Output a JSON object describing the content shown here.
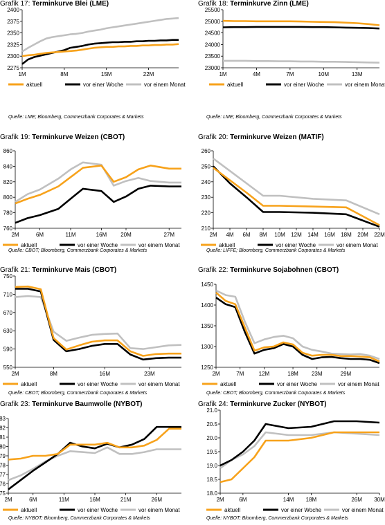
{
  "legend": {
    "aktuell": "aktuell",
    "woche": "vor einer Woche",
    "monat": "vor einem Monat"
  },
  "colors": {
    "aktuell": "#f7a21b",
    "woche": "#000000",
    "monat": "#c0c0c0"
  },
  "chart_data": [
    {
      "id": "g17",
      "type": "line",
      "title_prefix": "Grafik 17:",
      "title": "Terminkurve Blei (LME)",
      "source": "Quelle: LME; Bloomberg, Commerzbank Corporates & Markets",
      "x": [
        1,
        2,
        3,
        4,
        5,
        6,
        7,
        8,
        9,
        10,
        11,
        12,
        13,
        14,
        15,
        16,
        17,
        18,
        19,
        20,
        21,
        22,
        23,
        24,
        25,
        26,
        27
      ],
      "xticks": [
        "1M",
        "8M",
        "15M",
        "22M"
      ],
      "xtick_pos": [
        1,
        8,
        15,
        22
      ],
      "ylim": [
        2275,
        2400
      ],
      "yticks": [
        2275,
        2300,
        2325,
        2350,
        2375,
        2400
      ],
      "series": [
        {
          "name": "aktuell",
          "key": "aktuell",
          "values": [
            2300,
            2302,
            2303,
            2305,
            2307,
            2308,
            2309,
            2310,
            2311,
            2312,
            2314,
            2316,
            2318,
            2319,
            2320,
            2320,
            2321,
            2321,
            2322,
            2322,
            2323,
            2323,
            2324,
            2324,
            2325,
            2325,
            2326
          ]
        },
        {
          "name": "vor einer Woche",
          "key": "woche",
          "values": [
            2283,
            2293,
            2298,
            2301,
            2304,
            2307,
            2310,
            2313,
            2318,
            2320,
            2322,
            2325,
            2327,
            2328,
            2329,
            2330,
            2330,
            2331,
            2331,
            2332,
            2332,
            2333,
            2333,
            2334,
            2334,
            2335,
            2335
          ]
        },
        {
          "name": "vor einem Monat",
          "key": "monat",
          "values": [
            2310,
            2318,
            2325,
            2332,
            2338,
            2341,
            2343,
            2345,
            2347,
            2348,
            2350,
            2353,
            2355,
            2357,
            2360,
            2362,
            2364,
            2366,
            2368,
            2370,
            2372,
            2374,
            2376,
            2378,
            2380,
            2381,
            2382
          ]
        }
      ]
    },
    {
      "id": "g18",
      "type": "line",
      "title_prefix": "Grafik 18:",
      "title": "Terminkurve Zinn (LME)",
      "source": "Quelle: LME; Bloomberg, Commerzbank Corporates & Markets",
      "x": [
        1,
        2,
        3,
        4,
        5,
        6,
        7,
        8,
        9,
        10,
        11,
        12,
        13,
        14,
        15
      ],
      "xticks": [
        "1M",
        "4M",
        "7M",
        "10M",
        "13M"
      ],
      "xtick_pos": [
        1,
        4,
        7,
        10,
        13
      ],
      "ylim": [
        23000,
        25500
      ],
      "yticks": [
        23000,
        23500,
        24000,
        24500,
        25000,
        25500
      ],
      "series": [
        {
          "name": "aktuell",
          "key": "aktuell",
          "values": [
            25020,
            25010,
            25010,
            25000,
            25000,
            25000,
            25000,
            24990,
            24980,
            24970,
            24960,
            24940,
            24920,
            24880,
            24830
          ]
        },
        {
          "name": "vor einer Woche",
          "key": "woche",
          "values": [
            24740,
            24750,
            24750,
            24760,
            24760,
            24760,
            24760,
            24760,
            24750,
            24750,
            24740,
            24730,
            24720,
            24710,
            24690
          ]
        },
        {
          "name": "vor einem Monat",
          "key": "monat",
          "values": [
            23300,
            23300,
            23300,
            23290,
            23290,
            23280,
            23280,
            23270,
            23270,
            23260,
            23260,
            23250,
            23240,
            23230,
            23220
          ]
        }
      ]
    },
    {
      "id": "g19",
      "type": "line",
      "title_prefix": "Grafik 19:",
      "title": "Terminkurve Weizen (CBOT)",
      "source": "Quelle: CBOT; Bloomberg, Commerzbank Corporates & Markets",
      "x": [
        2,
        4,
        6,
        9,
        11,
        13,
        15,
        16,
        18,
        20,
        22,
        24,
        27,
        29
      ],
      "xticks": [
        "2M",
        "6M",
        "11M",
        "16M",
        "20M",
        "27M"
      ],
      "xtick_pos": [
        2,
        6,
        11,
        16,
        20,
        27
      ],
      "ylim": [
        760,
        860
      ],
      "yticks": [
        760,
        780,
        800,
        820,
        840,
        860
      ],
      "series": [
        {
          "name": "aktuell",
          "key": "aktuell",
          "values": [
            792,
            798,
            803,
            814,
            826,
            838,
            840,
            841,
            820,
            826,
            836,
            841,
            837,
            837
          ]
        },
        {
          "name": "vor einer Woche",
          "key": "woche",
          "values": [
            767,
            773,
            777,
            785,
            798,
            811,
            809,
            808,
            794,
            801,
            811,
            815,
            814,
            814
          ]
        },
        {
          "name": "vor einem Monat",
          "key": "monat",
          "values": [
            794,
            804,
            810,
            824,
            836,
            845,
            843,
            842,
            815,
            821,
            825,
            821,
            819,
            819
          ]
        }
      ]
    },
    {
      "id": "g20",
      "type": "line",
      "title_prefix": "Grafik 20:",
      "title": "Terminkurve Weizen (MATIF)",
      "source": "Quelle: LIFFE; Bloomberg, Commerzbank Corporates & Markets",
      "x": [
        2,
        4,
        6,
        8,
        10,
        14,
        18,
        22
      ],
      "xticks": [
        "2M",
        "4M",
        "6M",
        "8M",
        "10M",
        "12M",
        "14M",
        "16M",
        "18M",
        "20M",
        "22M"
      ],
      "xtick_pos": [
        2,
        4,
        6,
        8,
        10,
        12,
        14,
        16,
        18,
        20,
        22
      ],
      "ylim": [
        210,
        260
      ],
      "yticks": [
        210,
        220,
        230,
        240,
        250,
        260
      ],
      "series": [
        {
          "name": "aktuell",
          "key": "aktuell",
          "values": [
            249,
            241,
            233,
            224.5,
            224.5,
            224,
            223.5,
            212
          ]
        },
        {
          "name": "vor einer Woche",
          "key": "woche",
          "values": [
            250,
            239,
            230,
            220.5,
            220.5,
            220,
            219,
            211
          ]
        },
        {
          "name": "vor einem Monat",
          "key": "monat",
          "values": [
            255,
            247,
            239,
            231,
            231,
            229,
            228,
            219
          ]
        }
      ]
    },
    {
      "id": "g21",
      "type": "line",
      "title_prefix": "Grafik 21:",
      "title": "Terminkurve Mais (CBOT)",
      "source": "Quelle: CBOT; Bloomberg, Commerzbank Corporates & Markets",
      "x": [
        2,
        4,
        6,
        8,
        10,
        12,
        14,
        16,
        18,
        20,
        22,
        24,
        26,
        28
      ],
      "xticks": [
        "2M",
        "8M",
        "16M",
        "23M"
      ],
      "xtick_pos": [
        2,
        8,
        16,
        23
      ],
      "ylim": [
        550,
        750
      ],
      "yticks": [
        550,
        590,
        630,
        670,
        710,
        750
      ],
      "series": [
        {
          "name": "aktuell",
          "key": "aktuell",
          "values": [
            726,
            727,
            721,
            614,
            589,
            598,
            606,
            609,
            609,
            585,
            575,
            579,
            580,
            580
          ]
        },
        {
          "name": "vor einer Woche",
          "key": "woche",
          "values": [
            722,
            722,
            716,
            610,
            585,
            590,
            597,
            601,
            601,
            578,
            567,
            570,
            571,
            571
          ]
        },
        {
          "name": "vor einem Monat",
          "key": "monat",
          "values": [
            704,
            706,
            704,
            628,
            608,
            615,
            621,
            623,
            624,
            592,
            590,
            594,
            598,
            599
          ]
        }
      ]
    },
    {
      "id": "g22",
      "type": "line",
      "title_prefix": "Grafik 22:",
      "title": "Terminkurve Sojabohnen (CBOT)",
      "source": "Quelle: CBOT; Bloomberg, Commerzbank Corporates & Markets",
      "x": [
        2,
        4,
        6,
        8,
        10,
        12,
        14,
        16,
        18,
        20,
        22,
        24,
        26,
        28,
        30,
        32,
        34,
        36
      ],
      "xticks": [
        "2M",
        "7M",
        "12M",
        "18M",
        "23M",
        "29M"
      ],
      "xtick_pos": [
        2,
        7,
        12,
        18,
        23,
        29
      ],
      "ylim": [
        1250,
        1450
      ],
      "yticks": [
        1250,
        1300,
        1350,
        1400,
        1450
      ],
      "series": [
        {
          "name": "aktuell",
          "key": "aktuell",
          "values": [
            1430,
            1410,
            1402,
            1346,
            1290,
            1298,
            1300,
            1310,
            1305,
            1285,
            1278,
            1280,
            1280,
            1277,
            1277,
            1276,
            1274,
            1264
          ]
        },
        {
          "name": "vor einer Woche",
          "key": "woche",
          "values": [
            1418,
            1402,
            1395,
            1335,
            1283,
            1292,
            1296,
            1306,
            1300,
            1280,
            1270,
            1274,
            1275,
            1272,
            1270,
            1270,
            1268,
            1260
          ]
        },
        {
          "name": "vor einem Monat",
          "key": "monat",
          "values": [
            1435,
            1424,
            1420,
            1360,
            1308,
            1317,
            1323,
            1326,
            1320,
            1300,
            1292,
            1288,
            1283,
            1282,
            1281,
            1282,
            1278,
            1270
          ]
        }
      ]
    },
    {
      "id": "g23",
      "type": "line",
      "title_prefix": "Grafik 23:",
      "title": "Terminkurve Baumwolle (NYBOT)",
      "source": "Quelle: NYBOT; Bloomberg, Commerzbank Corporates & Markets",
      "x": [
        2,
        4,
        6,
        8,
        10,
        12,
        14,
        16,
        18,
        20,
        22,
        24,
        26,
        28,
        30
      ],
      "xticks": [
        "2M",
        "6M",
        "11M",
        "16M",
        "21M",
        "26M"
      ],
      "xtick_pos": [
        2,
        6,
        11,
        16,
        21,
        26
      ],
      "ylim": [
        75,
        83
      ],
      "yticks": [
        75,
        76,
        77,
        78,
        79,
        80,
        81,
        82,
        83
      ],
      "series": [
        {
          "name": "aktuell",
          "key": "aktuell",
          "values": [
            78.6,
            78.7,
            79.0,
            79.0,
            79.2,
            80.2,
            80.2,
            80.2,
            80.4,
            79.9,
            79.9,
            80.1,
            80.7,
            81.9,
            81.9
          ]
        },
        {
          "name": "vor einer Woche",
          "key": "woche",
          "values": [
            75.4,
            76.4,
            77.4,
            78.3,
            79.2,
            80.4,
            80.0,
            79.8,
            80.3,
            79.9,
            80.2,
            80.8,
            82.1,
            82.1,
            82.1
          ]
        },
        {
          "name": "vor einem Monat",
          "key": "monat",
          "values": [
            76.4,
            76.9,
            77.6,
            78.4,
            79.0,
            79.5,
            79.4,
            79.3,
            79.9,
            79.2,
            79.2,
            79.4,
            79.7,
            79.7,
            79.7
          ]
        }
      ]
    },
    {
      "id": "g24",
      "type": "line",
      "title_prefix": "Grafik 24:",
      "title": "Terminkurve Zucker (NYBOT)",
      "source": "Quelle: NYBOT; Bloomberg, Commerzbank Corporates & Markets",
      "x": [
        2,
        4,
        6,
        8,
        10,
        14,
        18,
        22,
        26,
        30
      ],
      "xticks": [
        "2M",
        "6M",
        "14M",
        "18M",
        "26M",
        "30M"
      ],
      "xtick_pos": [
        2,
        6,
        14,
        18,
        26,
        30
      ],
      "ylim": [
        18.0,
        21.0
      ],
      "yticks": [
        18.0,
        18.5,
        19.0,
        19.5,
        20.0,
        20.5,
        21.0
      ],
      "series": [
        {
          "name": "aktuell",
          "key": "aktuell",
          "values": [
            18.4,
            18.5,
            18.9,
            19.3,
            19.9,
            19.9,
            20.0,
            20.2,
            20.2,
            20.2
          ]
        },
        {
          "name": "vor einer Woche",
          "key": "woche",
          "values": [
            19.0,
            19.2,
            19.5,
            19.9,
            20.5,
            20.35,
            20.4,
            20.6,
            20.6,
            20.55
          ]
        },
        {
          "name": "vor einem Monat",
          "key": "monat",
          "values": [
            18.9,
            19.2,
            19.4,
            19.7,
            20.2,
            20.1,
            20.1,
            20.2,
            20.15,
            20.1
          ]
        }
      ]
    }
  ]
}
